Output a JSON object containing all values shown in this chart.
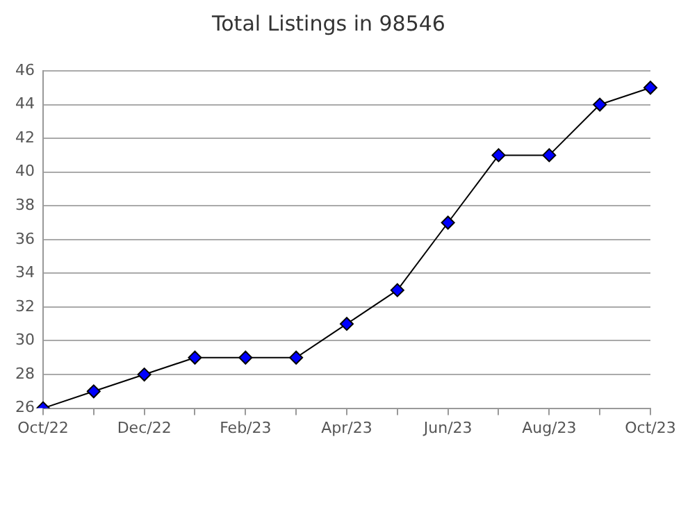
{
  "chart_data": {
    "type": "line",
    "title": "Total Listings in 98546",
    "categories": [
      "Oct/22",
      null,
      "Dec/22",
      null,
      "Feb/23",
      null,
      "Apr/23",
      null,
      "Jun/23",
      null,
      "Aug/23",
      null,
      "Oct/23"
    ],
    "series": [
      {
        "color": "#0000ff",
        "values": [
          26,
          27,
          28,
          29,
          29,
          29,
          31,
          33,
          37,
          41,
          41,
          44,
          45
        ]
      }
    ],
    "ylim": [
      26,
      46
    ],
    "yticks": [
      26,
      28,
      30,
      32,
      34,
      36,
      38,
      40,
      42,
      44,
      46
    ],
    "grid": "y",
    "marker": "diamond",
    "line_style": "solid",
    "legend": false
  }
}
